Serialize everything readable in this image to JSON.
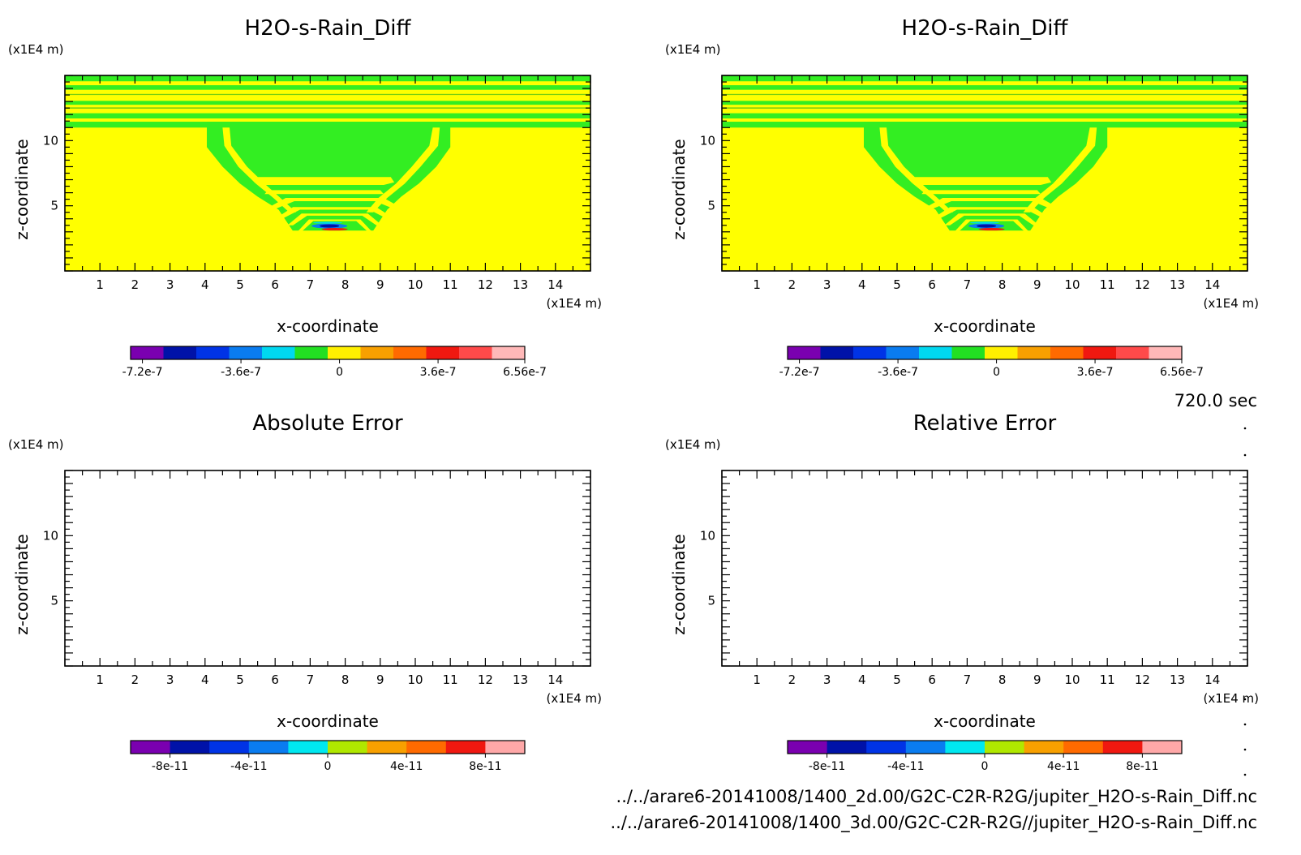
{
  "chart_data": [
    {
      "type": "heatmap",
      "title": "H2O-s-Rain_Diff",
      "xlabel": "x-coordinate",
      "ylabel": "z-coordinate",
      "x_unit": "(x1E4 m)",
      "y_unit": "(x1E4 m)",
      "xlim": [
        0,
        15
      ],
      "ylim": [
        0,
        15
      ],
      "x_ticks": [
        "1",
        "2",
        "3",
        "4",
        "5",
        "6",
        "7",
        "8",
        "9",
        "10",
        "11",
        "12",
        "13",
        "14"
      ],
      "y_ticks": [
        "5",
        "10"
      ],
      "colorbar": {
        "min": -7.2e-07,
        "max": 6.56e-07,
        "labels": [
          "-7.2e-7",
          "-3.6e-7",
          "0",
          "3.6e-7",
          "6.56e-7"
        ],
        "colors": [
          "#7a00b0",
          "#0012a8",
          "#0033e6",
          "#0a7cf0",
          "#00d8f0",
          "#22e022",
          "#fff000",
          "#f8a000",
          "#ff6a00",
          "#f01810",
          "#ff4a4a",
          "#ffb8b8"
        ]
      }
    },
    {
      "type": "heatmap",
      "title": "H2O-s-Rain_Diff",
      "xlabel": "x-coordinate",
      "ylabel": "z-coordinate",
      "x_unit": "(x1E4 m)",
      "y_unit": "(x1E4 m)",
      "xlim": [
        0,
        15
      ],
      "ylim": [
        0,
        15
      ],
      "x_ticks": [
        "1",
        "2",
        "3",
        "4",
        "5",
        "6",
        "7",
        "8",
        "9",
        "10",
        "11",
        "12",
        "13",
        "14"
      ],
      "y_ticks": [
        "5",
        "10"
      ],
      "colorbar": {
        "min": -7.2e-07,
        "max": 6.56e-07,
        "labels": [
          "-7.2e-7",
          "-3.6e-7",
          "0",
          "3.6e-7",
          "6.56e-7"
        ],
        "colors": [
          "#7a00b0",
          "#0012a8",
          "#0033e6",
          "#0a7cf0",
          "#00d8f0",
          "#22e022",
          "#fff000",
          "#f8a000",
          "#ff6a00",
          "#f01810",
          "#ff4a4a",
          "#ffb8b8"
        ]
      }
    },
    {
      "type": "heatmap",
      "title": "Absolute Error",
      "xlabel": "x-coordinate",
      "ylabel": "z-coordinate",
      "x_unit": "(x1E4 m)",
      "y_unit": "(x1E4 m)",
      "xlim": [
        0,
        15
      ],
      "ylim": [
        0,
        15
      ],
      "x_ticks": [
        "1",
        "2",
        "3",
        "4",
        "5",
        "6",
        "7",
        "8",
        "9",
        "10",
        "11",
        "12",
        "13",
        "14"
      ],
      "y_ticks": [
        "5",
        "10"
      ],
      "colorbar": {
        "labels": [
          "-8e-11",
          "-4e-11",
          "0",
          "4e-11",
          "8e-11"
        ],
        "colors": [
          "#7a00b0",
          "#0012a8",
          "#0033e6",
          "#0a7cf0",
          "#00e8f0",
          "#b0e800",
          "#f8a000",
          "#ff6a00",
          "#f01810",
          "#ffa8a8"
        ]
      }
    },
    {
      "type": "heatmap",
      "title": "Relative Error",
      "xlabel": "x-coordinate",
      "ylabel": "z-coordinate",
      "x_unit": "(x1E4 m)",
      "y_unit": "(x1E4 m)",
      "xlim": [
        0,
        15
      ],
      "ylim": [
        0,
        15
      ],
      "x_ticks": [
        "1",
        "2",
        "3",
        "4",
        "5",
        "6",
        "7",
        "8",
        "9",
        "10",
        "11",
        "12",
        "13",
        "14"
      ],
      "y_ticks": [
        "5",
        "10"
      ],
      "colorbar": {
        "labels": [
          "-8e-11",
          "-4e-11",
          "0",
          "4e-11",
          "8e-11"
        ],
        "colors": [
          "#7a00b0",
          "#0012a8",
          "#0033e6",
          "#0a7cf0",
          "#00e8f0",
          "#b0e800",
          "#f8a000",
          "#ff6a00",
          "#f01810",
          "#ffa8a8"
        ]
      }
    }
  ],
  "time_label": "720.0 sec",
  "file_paths": [
    "../../arare6-20141008/1400_2d.00/G2C-C2R-R2G/jupiter_H2O-s-Rain_Diff.nc",
    "../../arare6-20141008/1400_3d.00/G2C-C2R-R2G//jupiter_H2O-s-Rain_Diff.nc"
  ],
  "colors": {
    "field_yellow": "#ffff00",
    "field_green": "#33ee22"
  }
}
